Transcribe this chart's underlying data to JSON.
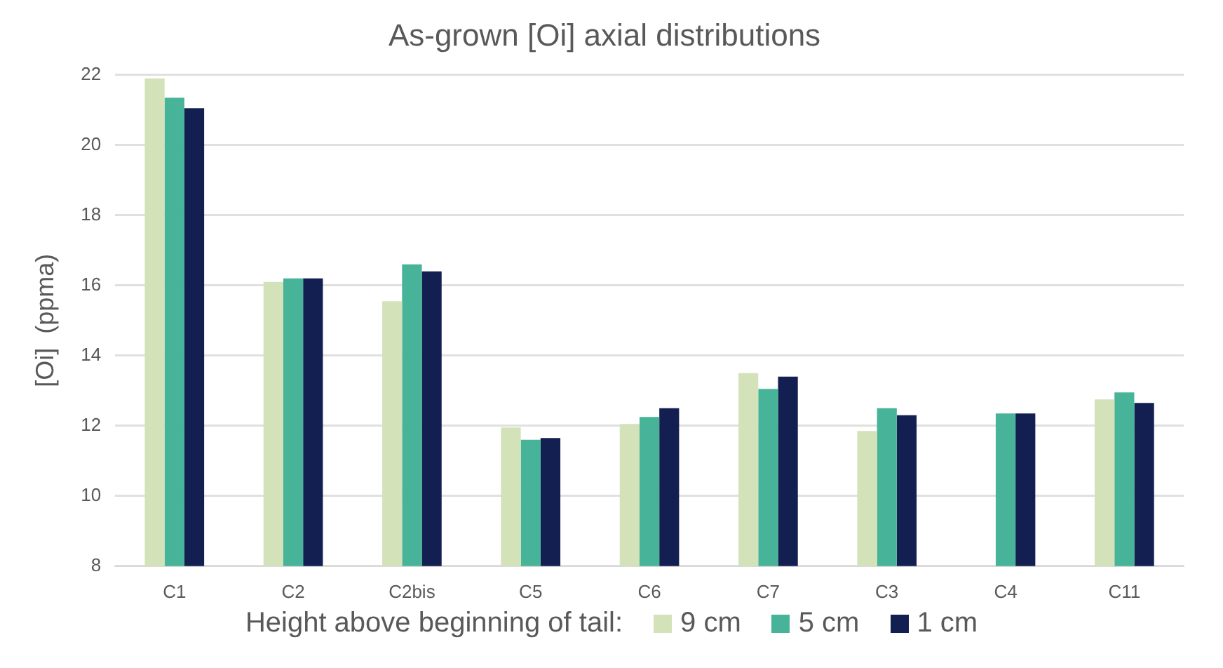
{
  "chart_data": {
    "type": "bar",
    "title": "As-grown [Oi] axial distributions",
    "ylabel": "[Oi]  (ppma)",
    "legend_title": "Height above beginning of tail:",
    "categories": [
      "C1",
      "C2",
      "C2bis",
      "C5",
      "C6",
      "C7",
      "C3",
      "C4",
      "C11"
    ],
    "series": [
      {
        "name": "9 cm",
        "color": "#d3e2b8",
        "values": [
          21.9,
          16.1,
          15.55,
          11.95,
          12.05,
          13.5,
          11.85,
          null,
          12.75
        ]
      },
      {
        "name": "5 cm",
        "color": "#47b398",
        "values": [
          21.35,
          16.2,
          16.6,
          11.6,
          12.25,
          13.05,
          12.5,
          12.35,
          12.95
        ]
      },
      {
        "name": "1 cm",
        "color": "#131f51",
        "values": [
          21.05,
          16.2,
          16.4,
          11.65,
          12.5,
          13.4,
          12.3,
          12.35,
          12.65
        ]
      }
    ],
    "ylim": [
      8,
      22
    ],
    "yticks": [
      8,
      10,
      12,
      14,
      16,
      18,
      20,
      22
    ],
    "grid": "y",
    "legend": "bottom"
  }
}
